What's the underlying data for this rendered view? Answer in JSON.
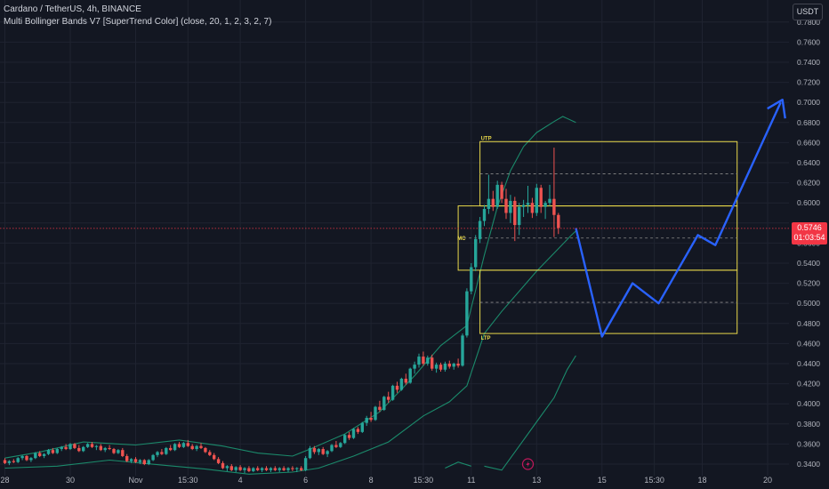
{
  "header": {
    "symbol_line": "Cardano / TetherUS, 4h, BINANCE",
    "indicator_line": "Multi Bollinger Bands V7 [SuperTrend Color] (close, 20, 1, 2, 3, 2, 7)",
    "currency_button": "USDT"
  },
  "last_price": {
    "value_label": "0.5746",
    "countdown": "01:03:54",
    "value": 0.5746
  },
  "colors": {
    "up": "#26a69a",
    "down": "#ef5350",
    "band": "#1b8a6b",
    "zone": "#e8d84a",
    "projection": "#2962ff",
    "price_line": "#f23645"
  },
  "chart_data": {
    "type": "candlestick",
    "y_axis": {
      "min": 0.33,
      "max": 0.79,
      "ticks": [
        0.34,
        0.36,
        0.38,
        0.4,
        0.42,
        0.44,
        0.46,
        0.48,
        0.5,
        0.52,
        0.54,
        0.56,
        0.58,
        0.6,
        0.62,
        0.64,
        0.66,
        0.68,
        0.7,
        0.72,
        0.74,
        0.76,
        0.78
      ],
      "tick_labels": [
        "0.3400",
        "0.3600",
        "0.3800",
        "0.4000",
        "0.4200",
        "0.4400",
        "0.4600",
        "0.4800",
        "0.5000",
        "0.5200",
        "0.5400",
        "0.5600",
        "0.5800",
        "0.6000",
        "0.6200",
        "0.6400",
        "0.6600",
        "0.6800",
        "0.7000",
        "0.7200",
        "0.7400",
        "0.7600",
        "0.7800"
      ]
    },
    "x_axis": {
      "bar_count": 172,
      "labels": [
        {
          "text": "28",
          "bar": 0
        },
        {
          "text": "30",
          "bar": 15
        },
        {
          "text": "Nov",
          "bar": 30
        },
        {
          "text": "15:30",
          "bar": 42
        },
        {
          "text": "4",
          "bar": 54
        },
        {
          "text": "6",
          "bar": 69
        },
        {
          "text": "8",
          "bar": 84
        },
        {
          "text": "15:30",
          "bar": 96
        },
        {
          "text": "11",
          "bar": 107
        },
        {
          "text": "13",
          "bar": 122
        },
        {
          "text": "15",
          "bar": 137
        },
        {
          "text": "15:30",
          "bar": 149
        },
        {
          "text": "18",
          "bar": 160
        },
        {
          "text": "20",
          "bar": 175
        }
      ]
    },
    "candles": [
      [
        0.344,
        0.346,
        0.34,
        0.341
      ],
      [
        0.341,
        0.344,
        0.339,
        0.343
      ],
      [
        0.343,
        0.345,
        0.341,
        0.342
      ],
      [
        0.342,
        0.347,
        0.341,
        0.346
      ],
      [
        0.346,
        0.349,
        0.344,
        0.348
      ],
      [
        0.348,
        0.349,
        0.343,
        0.344
      ],
      [
        0.344,
        0.347,
        0.342,
        0.346
      ],
      [
        0.346,
        0.352,
        0.345,
        0.351
      ],
      [
        0.351,
        0.353,
        0.347,
        0.348
      ],
      [
        0.348,
        0.351,
        0.346,
        0.35
      ],
      [
        0.35,
        0.355,
        0.349,
        0.354
      ],
      [
        0.354,
        0.356,
        0.35,
        0.351
      ],
      [
        0.351,
        0.356,
        0.35,
        0.355
      ],
      [
        0.355,
        0.358,
        0.353,
        0.357
      ],
      [
        0.357,
        0.36,
        0.354,
        0.355
      ],
      [
        0.355,
        0.361,
        0.354,
        0.36
      ],
      [
        0.36,
        0.361,
        0.355,
        0.356
      ],
      [
        0.356,
        0.359,
        0.352,
        0.353
      ],
      [
        0.353,
        0.358,
        0.352,
        0.357
      ],
      [
        0.357,
        0.361,
        0.356,
        0.36
      ],
      [
        0.36,
        0.362,
        0.356,
        0.357
      ],
      [
        0.357,
        0.359,
        0.354,
        0.358
      ],
      [
        0.358,
        0.36,
        0.353,
        0.354
      ],
      [
        0.354,
        0.357,
        0.352,
        0.356
      ],
      [
        0.356,
        0.359,
        0.354,
        0.355
      ],
      [
        0.355,
        0.356,
        0.35,
        0.351
      ],
      [
        0.351,
        0.355,
        0.35,
        0.354
      ],
      [
        0.354,
        0.356,
        0.347,
        0.348
      ],
      [
        0.348,
        0.35,
        0.342,
        0.343
      ],
      [
        0.343,
        0.346,
        0.341,
        0.345
      ],
      [
        0.345,
        0.347,
        0.341,
        0.342
      ],
      [
        0.342,
        0.345,
        0.34,
        0.344
      ],
      [
        0.344,
        0.345,
        0.339,
        0.34
      ],
      [
        0.34,
        0.345,
        0.339,
        0.344
      ],
      [
        0.344,
        0.35,
        0.343,
        0.349
      ],
      [
        0.349,
        0.353,
        0.347,
        0.352
      ],
      [
        0.352,
        0.355,
        0.349,
        0.35
      ],
      [
        0.35,
        0.357,
        0.349,
        0.356
      ],
      [
        0.356,
        0.359,
        0.353,
        0.354
      ],
      [
        0.354,
        0.361,
        0.353,
        0.36
      ],
      [
        0.36,
        0.362,
        0.356,
        0.357
      ],
      [
        0.357,
        0.362,
        0.356,
        0.361
      ],
      [
        0.361,
        0.364,
        0.357,
        0.358
      ],
      [
        0.358,
        0.36,
        0.354,
        0.355
      ],
      [
        0.355,
        0.359,
        0.353,
        0.358
      ],
      [
        0.358,
        0.361,
        0.355,
        0.356
      ],
      [
        0.356,
        0.357,
        0.351,
        0.352
      ],
      [
        0.352,
        0.354,
        0.348,
        0.349
      ],
      [
        0.349,
        0.351,
        0.344,
        0.345
      ],
      [
        0.345,
        0.347,
        0.34,
        0.341
      ],
      [
        0.341,
        0.343,
        0.335,
        0.336
      ],
      [
        0.336,
        0.339,
        0.333,
        0.338
      ],
      [
        0.338,
        0.34,
        0.333,
        0.334
      ],
      [
        0.334,
        0.338,
        0.332,
        0.337
      ],
      [
        0.337,
        0.339,
        0.333,
        0.334
      ],
      [
        0.334,
        0.337,
        0.331,
        0.336
      ],
      [
        0.336,
        0.338,
        0.332,
        0.333
      ],
      [
        0.333,
        0.337,
        0.332,
        0.336
      ],
      [
        0.336,
        0.338,
        0.333,
        0.334
      ],
      [
        0.334,
        0.337,
        0.332,
        0.336
      ],
      [
        0.336,
        0.338,
        0.333,
        0.334
      ],
      [
        0.334,
        0.337,
        0.332,
        0.336
      ],
      [
        0.336,
        0.338,
        0.333,
        0.334
      ],
      [
        0.334,
        0.337,
        0.332,
        0.336
      ],
      [
        0.336,
        0.338,
        0.333,
        0.334
      ],
      [
        0.334,
        0.337,
        0.332,
        0.336
      ],
      [
        0.336,
        0.338,
        0.333,
        0.335
      ],
      [
        0.335,
        0.337,
        0.332,
        0.336
      ],
      [
        0.336,
        0.338,
        0.333,
        0.334
      ],
      [
        0.334,
        0.348,
        0.333,
        0.346
      ],
      [
        0.346,
        0.358,
        0.345,
        0.356
      ],
      [
        0.356,
        0.358,
        0.35,
        0.352
      ],
      [
        0.352,
        0.356,
        0.349,
        0.355
      ],
      [
        0.355,
        0.357,
        0.349,
        0.35
      ],
      [
        0.35,
        0.354,
        0.347,
        0.353
      ],
      [
        0.353,
        0.36,
        0.352,
        0.359
      ],
      [
        0.359,
        0.363,
        0.356,
        0.357
      ],
      [
        0.357,
        0.362,
        0.356,
        0.361
      ],
      [
        0.361,
        0.37,
        0.36,
        0.369
      ],
      [
        0.369,
        0.372,
        0.364,
        0.366
      ],
      [
        0.366,
        0.376,
        0.365,
        0.375
      ],
      [
        0.375,
        0.377,
        0.37,
        0.372
      ],
      [
        0.372,
        0.382,
        0.371,
        0.381
      ],
      [
        0.381,
        0.388,
        0.378,
        0.386
      ],
      [
        0.386,
        0.392,
        0.382,
        0.384
      ],
      [
        0.384,
        0.398,
        0.383,
        0.397
      ],
      [
        0.397,
        0.403,
        0.392,
        0.394
      ],
      [
        0.394,
        0.408,
        0.393,
        0.407
      ],
      [
        0.407,
        0.412,
        0.401,
        0.404
      ],
      [
        0.404,
        0.419,
        0.403,
        0.418
      ],
      [
        0.418,
        0.422,
        0.411,
        0.414
      ],
      [
        0.414,
        0.426,
        0.413,
        0.425
      ],
      [
        0.425,
        0.43,
        0.419,
        0.421
      ],
      [
        0.421,
        0.436,
        0.42,
        0.435
      ],
      [
        0.435,
        0.442,
        0.43,
        0.439
      ],
      [
        0.439,
        0.45,
        0.436,
        0.447
      ],
      [
        0.447,
        0.452,
        0.438,
        0.44
      ],
      [
        0.44,
        0.448,
        0.438,
        0.446
      ],
      [
        0.446,
        0.449,
        0.433,
        0.435
      ],
      [
        0.435,
        0.441,
        0.431,
        0.439
      ],
      [
        0.439,
        0.441,
        0.432,
        0.434
      ],
      [
        0.434,
        0.442,
        0.432,
        0.44
      ],
      [
        0.44,
        0.443,
        0.435,
        0.437
      ],
      [
        0.437,
        0.441,
        0.434,
        0.44
      ],
      [
        0.44,
        0.445,
        0.436,
        0.438
      ],
      [
        0.438,
        0.47,
        0.437,
        0.468
      ],
      [
        0.468,
        0.515,
        0.466,
        0.512
      ],
      [
        0.512,
        0.54,
        0.509,
        0.536
      ],
      [
        0.536,
        0.568,
        0.532,
        0.564
      ],
      [
        0.564,
        0.586,
        0.56,
        0.582
      ],
      [
        0.582,
        0.598,
        0.577,
        0.594
      ],
      [
        0.594,
        0.628,
        0.589,
        0.604
      ],
      [
        0.604,
        0.612,
        0.592,
        0.596
      ],
      [
        0.596,
        0.622,
        0.594,
        0.618
      ],
      [
        0.618,
        0.621,
        0.6,
        0.604
      ],
      [
        0.604,
        0.614,
        0.584,
        0.59
      ],
      [
        0.59,
        0.608,
        0.58,
        0.602
      ],
      [
        0.602,
        0.606,
        0.562,
        0.578
      ],
      [
        0.578,
        0.6,
        0.568,
        0.596
      ],
      [
        0.596,
        0.603,
        0.586,
        0.598
      ],
      [
        0.598,
        0.617,
        0.59,
        0.6
      ],
      [
        0.6,
        0.605,
        0.585,
        0.59
      ],
      [
        0.59,
        0.619,
        0.587,
        0.615
      ],
      [
        0.615,
        0.618,
        0.59,
        0.596
      ],
      [
        0.596,
        0.602,
        0.584,
        0.6
      ],
      [
        0.6,
        0.618,
        0.597,
        0.604
      ],
      [
        0.604,
        0.655,
        0.566,
        0.588
      ],
      [
        0.588,
        0.59,
        0.569,
        0.575
      ]
    ],
    "bands": {
      "upper2": [
        [
          0,
          0.346
        ],
        [
          8,
          0.352
        ],
        [
          18,
          0.362
        ],
        [
          30,
          0.359
        ],
        [
          40,
          0.364
        ],
        [
          50,
          0.358
        ],
        [
          58,
          0.351
        ],
        [
          66,
          0.348
        ],
        [
          70,
          0.355
        ],
        [
          78,
          0.37
        ],
        [
          86,
          0.392
        ],
        [
          94,
          0.428
        ],
        [
          100,
          0.458
        ],
        [
          106,
          0.478
        ],
        [
          110,
          0.548
        ],
        [
          113,
          0.596
        ],
        [
          116,
          0.632
        ],
        [
          119,
          0.656
        ],
        [
          122,
          0.67
        ],
        [
          126,
          0.681
        ],
        [
          128,
          0.686
        ],
        [
          131,
          0.68
        ]
      ],
      "lower2": [
        [
          0,
          0.336
        ],
        [
          12,
          0.338
        ],
        [
          24,
          0.344
        ],
        [
          36,
          0.339
        ],
        [
          46,
          0.335
        ],
        [
          56,
          0.33
        ],
        [
          66,
          0.332
        ],
        [
          72,
          0.336
        ],
        [
          80,
          0.348
        ],
        [
          88,
          0.362
        ],
        [
          96,
          0.388
        ],
        [
          102,
          0.402
        ],
        [
          106,
          0.418
        ],
        [
          110,
          0.47
        ],
        [
          114,
          0.492
        ],
        [
          118,
          0.512
        ],
        [
          122,
          0.532
        ],
        [
          126,
          0.55
        ],
        [
          130,
          0.568
        ],
        [
          131,
          0.572
        ]
      ],
      "lower3": [
        [
          110,
          0.338
        ],
        [
          114,
          0.334
        ],
        [
          118,
          0.358
        ],
        [
          122,
          0.382
        ],
        [
          126,
          0.406
        ],
        [
          129,
          0.434
        ],
        [
          131,
          0.448
        ]
      ],
      "trough": [
        [
          101,
          0.336
        ],
        [
          104,
          0.342
        ],
        [
          107,
          0.338
        ]
      ]
    },
    "zones": [
      {
        "label": "UTP",
        "top": 0.661,
        "bottom": 0.597,
        "from_bar": 109,
        "to_bar": 168,
        "mid": 0.629
      },
      {
        "label": "MC",
        "top": 0.597,
        "bottom": 0.533,
        "from_bar": 104,
        "to_bar": 168,
        "mid": 0.565
      },
      {
        "label": "LTP",
        "top": 0.533,
        "bottom": 0.47,
        "from_bar": 109,
        "to_bar": 168,
        "mid": 0.501
      }
    ],
    "projection": [
      [
        131,
        0.575
      ],
      [
        137,
        0.467
      ],
      [
        144,
        0.52
      ],
      [
        150,
        0.5
      ],
      [
        159,
        0.568
      ],
      [
        163,
        0.558
      ],
      [
        178,
        0.7
      ]
    ],
    "title": "",
    "xlabel": "",
    "ylabel": "",
    "grid": true,
    "legend": "none"
  }
}
